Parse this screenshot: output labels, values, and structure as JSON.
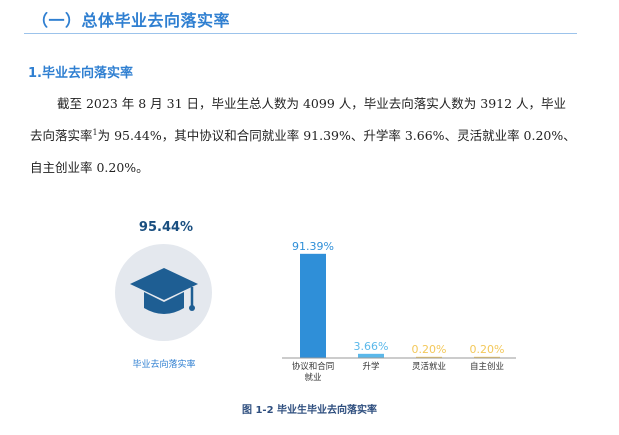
{
  "section": {
    "title": "（一）总体毕业去向落实率"
  },
  "subsection": {
    "title": "1.毕业去向落实率"
  },
  "paragraph": {
    "line1": "截至 2023 年 8 月 31 日，毕业生总人数为 4099 人，毕业去向落实人数为 3912 人，毕业",
    "line2_a": "去向落实率",
    "line2_footnote": "1",
    "line2_b": "为 95.44%，其中协议和合同就业率 91.39%、升学率 3.66%、灵活就业率 0.20%、",
    "line3": "自主创业率 0.20%。"
  },
  "overall": {
    "value_label": "95.44%",
    "value": 95.44,
    "label": "毕业去向落实率",
    "icon": "graduation-cap-icon"
  },
  "chart_data": {
    "type": "bar",
    "categories": [
      "协议和合同就业",
      "升学",
      "灵活就业",
      "自主创业"
    ],
    "values": [
      91.39,
      3.66,
      0.2,
      0.2
    ],
    "data_labels": [
      "91.39%",
      "3.66%",
      "0.20%",
      "0.20%"
    ],
    "colors": [
      "#2f8fd8",
      "#5bb8ea",
      "#f3c85a",
      "#f3c85a"
    ],
    "ylim": [
      0,
      100
    ]
  },
  "caption": {
    "text": "图 1-2  毕业生毕业去向落实率"
  }
}
